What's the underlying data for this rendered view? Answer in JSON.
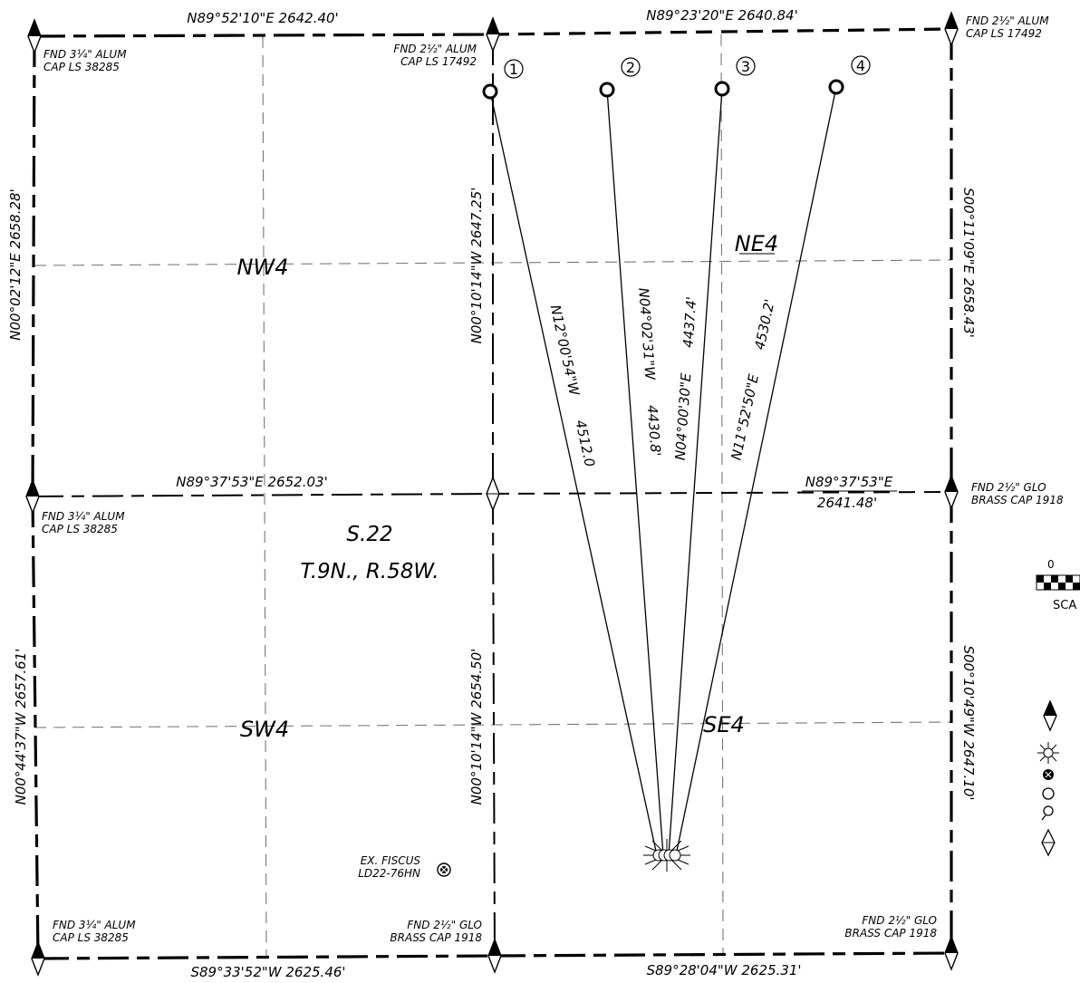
{
  "section": {
    "name": "S.22",
    "township_range": "T.9N., R.58W."
  },
  "quarters": {
    "nw": "NW4",
    "ne": "NE4",
    "sw": "SW4",
    "se": "SE4"
  },
  "calls": {
    "north_west": "N89°52'10\"E   2642.40'",
    "north_east": "N89°23'20\"E   2640.84'",
    "middle_west": "N89°37'53\"E   2652.03'",
    "middle_east_bearing": "N89°37'53\"E",
    "middle_east_distance": "2641.48'",
    "south_west": "S89°33'52\"W   2625.46'",
    "south_east": "S89°28'04\"W   2625.31'",
    "west_north": "N00°02'12\"E   2658.28'",
    "west_south": "N00°44'37\"W   2657.61'",
    "center_north": "N00°10'14\"W   2647.25'",
    "center_south": "N00°10'14\"W   2654.50'",
    "east_north": "S00°11'09\"E   2658.43'",
    "east_south": "S00°10'49\"W   2647.10'"
  },
  "monuments": {
    "nw_corner": [
      "FND 3¼\" ALUM",
      "CAP LS 38285"
    ],
    "n_quarter": [
      "FND 2½\" ALUM",
      "CAP LS 17492"
    ],
    "ne_corner": [
      "FND 2½\" ALUM",
      "CAP LS 17492"
    ],
    "w_quarter": [
      "FND 3¼\" ALUM",
      "CAP LS 38285"
    ],
    "e_quarter": [
      "FND 2½\" GLO",
      "BRASS CAP 1918"
    ],
    "sw_corner": [
      "FND 3¼\" ALUM",
      "CAP LS 38285"
    ],
    "s_quarter": [
      "FND 2½\" GLO",
      "BRASS CAP 1918"
    ],
    "se_corner": [
      "FND 2½\" GLO",
      "BRASS CAP 1918"
    ]
  },
  "fiscus": [
    "EX. FISCUS",
    "LD22-76HN"
  ],
  "wells": [
    {
      "number": "1",
      "bearing": "N12°00'54\"W",
      "distance": "4512.0"
    },
    {
      "number": "2",
      "bearing": "N04°02'31\"W",
      "distance": "4430.8'"
    },
    {
      "number": "3",
      "bearing": "N04°00'30\"E",
      "distance": "4437.4'"
    },
    {
      "number": "4",
      "bearing": "N11°52'50\"E",
      "distance": "4530.2'"
    }
  ],
  "scale": {
    "zero": "0",
    "label": "SCA"
  }
}
